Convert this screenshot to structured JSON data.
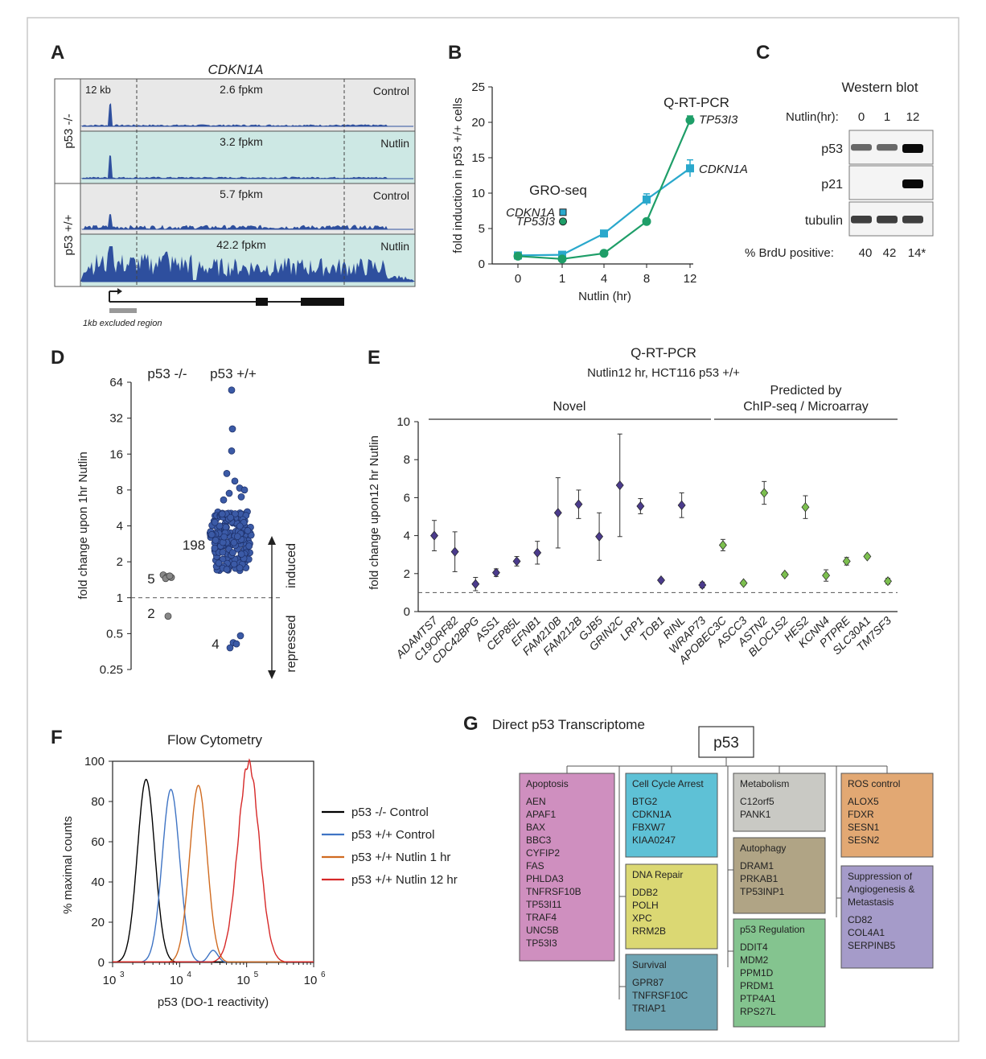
{
  "panels": {
    "A": {
      "letter": "A",
      "gene": "CDKN1A",
      "scale": "12 kb",
      "groups": [
        "p53 -/-",
        "p53 +/+"
      ],
      "tracks": [
        {
          "fpkm": "2.6 fpkm",
          "condition": "Control",
          "color": "#e8e8e8"
        },
        {
          "fpkm": "3.2 fpkm",
          "condition": "Nutlin",
          "color": "#cde8e4"
        },
        {
          "fpkm": "5.7 fpkm",
          "condition": "Control",
          "color": "#e8e8e8"
        },
        {
          "fpkm": "42.2 fpkm",
          "condition": "Nutlin",
          "color": "#cde8e4"
        }
      ],
      "excluded_note": "1kb excluded region"
    },
    "B": {
      "letter": "B",
      "method_label": "Q-RT-PCR",
      "gro_label": "GRO-seq",
      "gro_points": [
        {
          "gene": "CDKN1A",
          "value": 7.3,
          "color": "#2aa8cc"
        },
        {
          "gene": "TP53I3",
          "value": 6.0,
          "color": "#1e9e68"
        }
      ]
    },
    "C": {
      "letter": "C",
      "title": "Western blot",
      "nutlin_label": "Nutlin(hr):",
      "timepoints": [
        "0",
        "1",
        "12"
      ],
      "rows": [
        {
          "label": "p53",
          "intensity": [
            0.55,
            0.55,
            1.0
          ]
        },
        {
          "label": "p21",
          "intensity": [
            0.0,
            0.0,
            1.0
          ]
        },
        {
          "label": "tubulin",
          "intensity": [
            0.75,
            0.75,
            0.75
          ]
        }
      ],
      "brdu_label": "% BrdU positive:",
      "brdu_values": [
        "40",
        "42",
        "14*"
      ]
    },
    "D": {
      "letter": "D",
      "induced_label": "induced",
      "repressed_label": "repressed",
      "groups": [
        {
          "label": "p53 -/-",
          "n_induced": "5",
          "n_repressed": "2"
        },
        {
          "label": "p53 +/+",
          "n_induced": "198",
          "n_repressed": "4"
        }
      ]
    },
    "E": {
      "letter": "E",
      "title": "Q-RT-PCR",
      "subtitle": "Nutlin12 hr, HCT116 p53 +/+",
      "bracket_novel": "Novel",
      "bracket_predicted_1": "Predicted by",
      "bracket_predicted_2": "ChIP-seq / Microarray"
    },
    "F": {
      "letter": "F",
      "title": "Flow Cytometry",
      "legend": [
        {
          "label": "p53 -/- Control",
          "color": "#000000"
        },
        {
          "label": "p53 +/+ Control",
          "color": "#3f74c4"
        },
        {
          "label": "p53 +/+ Nutlin 1 hr",
          "color": "#d06b20"
        },
        {
          "label": "p53 +/+ Nutlin 12 hr",
          "color": "#d62828"
        }
      ]
    },
    "G": {
      "letter": "G",
      "title": "Direct p53 Transcriptome",
      "root": "p53",
      "boxes": [
        {
          "title": "Apoptosis",
          "genes": [
            "AEN",
            "APAF1",
            "BAX",
            "BBC3",
            "CYFIP2",
            "FAS",
            "PHLDA3",
            "TNFRSF10B",
            "TP53I11",
            "TRAF4",
            "UNC5B",
            "TP53I3"
          ],
          "color": "#cf8fbf"
        },
        {
          "title": "Cell Cycle Arrest",
          "genes": [
            "BTG2",
            "CDKN1A",
            "FBXW7",
            "KIAA0247"
          ],
          "color": "#5ec1d6"
        },
        {
          "title": "DNA Repair",
          "genes": [
            "DDB2",
            "POLH",
            "XPC",
            "RRM2B"
          ],
          "color": "#dbd873"
        },
        {
          "title": "Survival",
          "genes": [
            "GPR87",
            "TNFRSF10C",
            "TRIAP1"
          ],
          "color": "#6ea4b3"
        },
        {
          "title": "Metabolism",
          "genes": [
            "C12orf5",
            "PANK1"
          ],
          "color": "#c9c9c4"
        },
        {
          "title": "Autophagy",
          "genes": [
            "DRAM1",
            "PRKAB1",
            "TP53INP1"
          ],
          "color": "#b0a485"
        },
        {
          "title": "p53 Regulation",
          "genes": [
            "DDIT4",
            "MDM2",
            "PPM1D",
            "PRDM1",
            "PTP4A1",
            "RPS27L"
          ],
          "color": "#84c48f"
        },
        {
          "title": "ROS control",
          "genes": [
            "ALOX5",
            "FDXR",
            "SESN1",
            "SESN2"
          ],
          "color": "#e2a873"
        },
        {
          "title": "Suppression of Angiogenesis & Metastasis",
          "genes": [
            "CD82",
            "COL4A1",
            "SERPINB5"
          ],
          "color": "#a59bc9"
        }
      ]
    }
  },
  "chart_data": [
    {
      "panel": "B",
      "type": "line",
      "xlabel": "Nutlin (hr)",
      "ylabel": "fold induction in p53 +/+ cells",
      "categories": [
        "0",
        "1",
        "4",
        "8",
        "12"
      ],
      "ylim": [
        0,
        25
      ],
      "yticks": [
        0,
        5,
        10,
        15,
        20,
        25
      ],
      "series": [
        {
          "name": "CDKN1A",
          "color": "#2aa8cc",
          "values": [
            1.2,
            1.3,
            4.3,
            9.1,
            13.5
          ],
          "err": [
            0.2,
            0.2,
            0.3,
            0.8,
            1.2
          ]
        },
        {
          "name": "TP53I3",
          "color": "#1e9e68",
          "values": [
            1.1,
            0.7,
            1.5,
            6.0,
            20.3
          ],
          "err": [
            0.1,
            0.1,
            0.2,
            0.3,
            0.6
          ]
        }
      ]
    },
    {
      "panel": "D",
      "type": "scatter",
      "ylabel": "fold change upon 1hr Nutlin",
      "yscale": "log2",
      "yticks": [
        "0.25",
        "0.5",
        "1",
        "2",
        "4",
        "8",
        "16",
        "32",
        "64"
      ],
      "ylim": [
        0.25,
        64
      ],
      "groups": [
        {
          "name": "p53 -/-",
          "induced": [
            1.55,
            1.5,
            1.48,
            1.45,
            1.52
          ],
          "repressed": [
            0.7,
            0.75
          ]
        },
        {
          "name": "p53 +/+",
          "induced_top": [
            55,
            26,
            17,
            11,
            9.5,
            8.3,
            8.0,
            7.5,
            7.0,
            6.6
          ],
          "repressed": [
            0.42,
            0.38,
            0.41,
            0.48
          ]
        }
      ]
    },
    {
      "panel": "E",
      "type": "scatter",
      "ylabel": "fold change upon12 hr Nutlin",
      "ylim": [
        0,
        10
      ],
      "yticks": [
        0,
        2,
        4,
        6,
        8,
        10
      ],
      "reference_line": 1,
      "categories": [
        "ADAMTS7",
        "C19ORF82",
        "CDC42BPG",
        "ASS1",
        "CEP85L",
        "EFNB1",
        "FAM210B",
        "FAM212B",
        "GJB5",
        "GRIN2C",
        "LRP1",
        "TOB1",
        "RINL",
        "WRAP73",
        "APOBEC3C",
        "ASCC3",
        "ASTN2",
        "BLOC1S2",
        "HES2",
        "KCNN4",
        "PTPRE",
        "SLC30A1",
        "TM7SF3"
      ],
      "values": [
        4.0,
        3.15,
        1.45,
        2.05,
        2.65,
        3.1,
        5.2,
        5.65,
        3.95,
        6.65,
        5.55,
        1.65,
        5.6,
        1.4,
        3.5,
        1.5,
        6.25,
        1.95,
        5.5,
        1.9,
        2.65,
        2.9,
        1.6
      ],
      "errors": [
        0.8,
        1.05,
        0.35,
        0.2,
        0.25,
        0.6,
        1.85,
        0.75,
        1.25,
        2.7,
        0.4,
        0.1,
        0.65,
        0.15,
        0.3,
        0.1,
        0.6,
        0.1,
        0.6,
        0.3,
        0.2,
        0.1,
        0.15
      ],
      "groups": [
        "novel",
        "novel",
        "novel",
        "novel",
        "novel",
        "novel",
        "novel",
        "novel",
        "novel",
        "novel",
        "novel",
        "novel",
        "novel",
        "novel",
        "predicted",
        "predicted",
        "predicted",
        "predicted",
        "predicted",
        "predicted",
        "predicted",
        "predicted",
        "predicted"
      ],
      "group_colors": {
        "novel": "#4b3b8c",
        "predicted": "#7cbf4f"
      }
    },
    {
      "panel": "F",
      "type": "line",
      "xlabel": "p53 (DO-1 reactivity)",
      "ylabel": "% maximal counts",
      "xscale": "log10",
      "xticks": [
        "3",
        "4",
        "5",
        "6"
      ],
      "ylim": [
        0,
        100
      ],
      "yticks": [
        0,
        20,
        40,
        60,
        80,
        100
      ],
      "series": [
        {
          "name": "p53 -/- Control",
          "peak_log10": 3.5,
          "peak_value": 91
        },
        {
          "name": "p53 +/+ Control",
          "peak_log10": 3.87,
          "peak_value": 86
        },
        {
          "name": "p53 +/+ Nutlin 1 hr",
          "peak_log10": 4.28,
          "peak_value": 88
        },
        {
          "name": "p53 +/+ Nutlin 12 hr",
          "peak_log10": 5.03,
          "peak_value": 99
        }
      ]
    }
  ]
}
